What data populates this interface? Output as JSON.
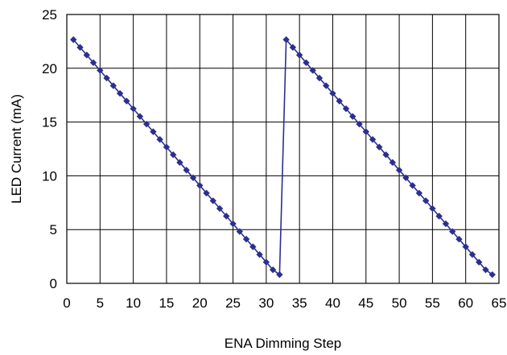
{
  "chart_data": {
    "type": "line",
    "title": "",
    "xlabel": "ENA Dimming Step",
    "ylabel": "LED Current (mA)",
    "xlim": [
      0,
      65
    ],
    "ylim": [
      0,
      25
    ],
    "xticks": [
      0,
      5,
      10,
      15,
      20,
      25,
      30,
      35,
      40,
      45,
      50,
      55,
      60,
      65
    ],
    "yticks": [
      0,
      5,
      10,
      15,
      20,
      25
    ],
    "grid": true,
    "legend": "none",
    "series": [
      {
        "color": "#2b2f8f",
        "marker": "diamond",
        "x": [
          1,
          2,
          3,
          4,
          5,
          6,
          7,
          8,
          9,
          10,
          11,
          12,
          13,
          14,
          15,
          16,
          17,
          18,
          19,
          20,
          21,
          22,
          23,
          24,
          25,
          26,
          27,
          28,
          29,
          30,
          31,
          32,
          33,
          34,
          35,
          36,
          37,
          38,
          39,
          40,
          41,
          42,
          43,
          44,
          45,
          46,
          47,
          48,
          49,
          50,
          51,
          52,
          53,
          54,
          55,
          56,
          57,
          58,
          59,
          60,
          61,
          62,
          63,
          64
        ],
        "y": [
          22.66,
          21.94,
          21.23,
          20.52,
          19.8,
          19.09,
          18.38,
          17.66,
          16.95,
          16.24,
          15.52,
          14.81,
          14.1,
          13.38,
          12.67,
          11.96,
          11.24,
          10.53,
          9.82,
          9.1,
          8.39,
          7.68,
          6.96,
          6.25,
          5.54,
          4.82,
          4.11,
          3.4,
          2.68,
          1.97,
          1.26,
          0.81,
          22.66,
          21.94,
          21.23,
          20.52,
          19.8,
          19.09,
          18.38,
          17.66,
          16.95,
          16.24,
          15.52,
          14.81,
          14.1,
          13.38,
          12.67,
          11.96,
          11.24,
          10.53,
          9.82,
          9.1,
          8.39,
          7.68,
          6.96,
          6.25,
          5.54,
          4.82,
          4.11,
          3.4,
          2.68,
          1.97,
          1.26,
          0.81
        ]
      }
    ]
  }
}
